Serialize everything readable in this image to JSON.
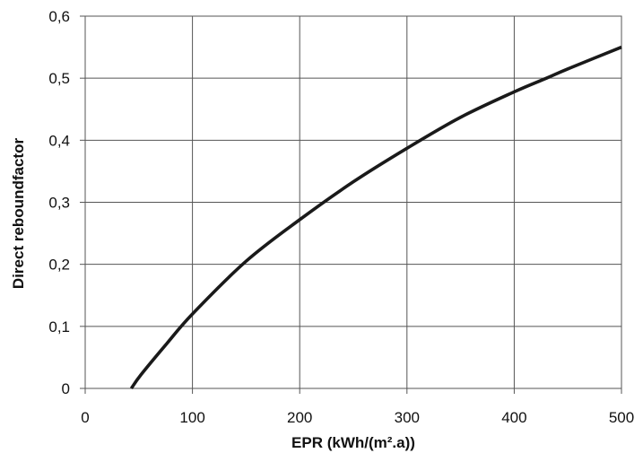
{
  "chart_data": {
    "type": "line",
    "title": "",
    "xlabel": "EPR (kWh/(m².a))",
    "ylabel": "Direct reboundfactor",
    "xlim": [
      0,
      500
    ],
    "ylim": [
      0,
      0.6
    ],
    "grid": true,
    "xticks": [
      0,
      100,
      200,
      300,
      400,
      500
    ],
    "xtick_labels": [
      "0",
      "100",
      "200",
      "300",
      "400",
      "500"
    ],
    "yticks": [
      0,
      0.1,
      0.2,
      0.3,
      0.4,
      0.5,
      0.6
    ],
    "ytick_labels": [
      "0",
      "0,1",
      "0,2",
      "0,3",
      "0,4",
      "0,5",
      "0,6"
    ],
    "series": [
      {
        "color": "#1a1a1a",
        "x": [
          43,
          52,
          75,
          100,
          150,
          200,
          250,
          300,
          350,
          400,
          430,
          450,
          500
        ],
        "y": [
          0,
          0.022,
          0.07,
          0.12,
          0.205,
          0.272,
          0.333,
          0.387,
          0.437,
          0.478,
          0.5,
          0.515,
          0.55
        ]
      }
    ]
  }
}
